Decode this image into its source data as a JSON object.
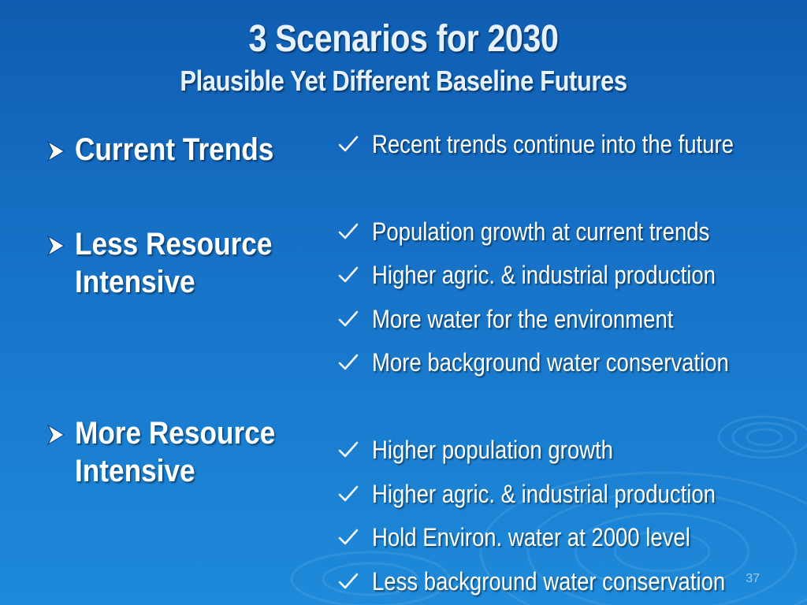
{
  "slide": {
    "title": "3 Scenarios for 2030",
    "subtitle": "Plausible Yet Different Baseline Futures",
    "scenarios": [
      {
        "label": "Current Trends"
      },
      {
        "label": "Less Resource Intensive"
      },
      {
        "label": "More Resource Intensive"
      }
    ],
    "details": [
      "Recent trends continue into the future",
      "Population growth at current trends",
      "Higher agric. & industrial production",
      "More water for the environment",
      "More background water conservation",
      "Higher population growth",
      "Higher agric. & industrial production",
      "Hold Environ. water at 2000 level",
      "Less background water conservation"
    ],
    "page_number": "37"
  },
  "colors": {
    "background_top": "#0f5db1",
    "background_bottom": "#1e8ad9",
    "title": "#e6f2ff",
    "text": "#ffffff",
    "bullet_arrow": "#ffffff",
    "check_mark": "#ffffff"
  },
  "icons": {
    "scenario_bullet": "arrowhead-bullet-icon",
    "detail_bullet": "check-mark-icon"
  }
}
